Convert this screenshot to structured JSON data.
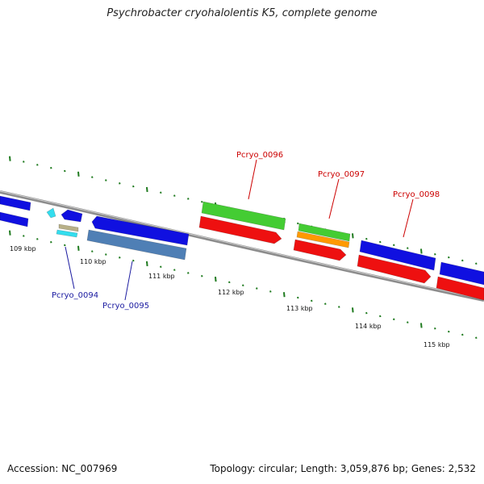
{
  "title": "Psychrobacter cryohalolentis K5, complete genome",
  "footer": {
    "accession": "Accession: NC_007969",
    "summary": "Topology: circular; Length: 3,059,876 bp; Genes: 2,532"
  },
  "scale_labels": [
    "109 kbp",
    "110 kbp",
    "111 kbp",
    "112 kbp",
    "113 kbp",
    "114 kbp",
    "115 kbp"
  ],
  "gene_labels": [
    {
      "text": "Pcryo_0094",
      "color": "#1a1aa0"
    },
    {
      "text": "Pcryo_0095",
      "color": "#1a1aa0"
    },
    {
      "text": "Pcryo_0096",
      "color": "#cc0000"
    },
    {
      "text": "Pcryo_0097",
      "color": "#cc0000"
    },
    {
      "text": "Pcryo_0098",
      "color": "#cc0000"
    }
  ],
  "colors": {
    "backbone": "#8c8c8c",
    "tick": "#1e7a1e",
    "blue_feature": "#1010e0",
    "red_feature": "#ee1010",
    "green_feature": "#44cc33",
    "orange_feature": "#ff9900",
    "steel_feature": "#4f7fb5",
    "cyan_feature": "#33ddee",
    "khaki_feature": "#b8b088"
  }
}
